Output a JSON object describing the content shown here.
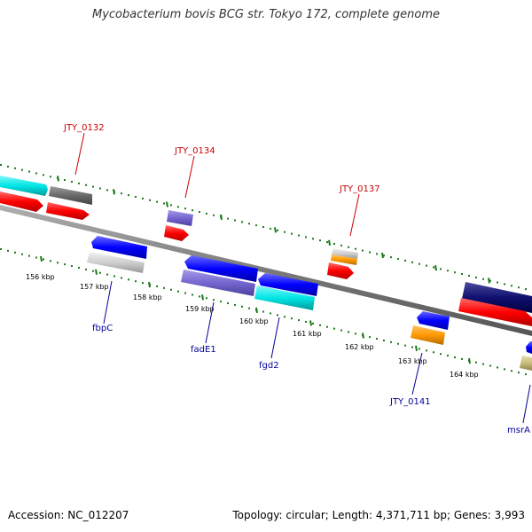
{
  "title": "Mycobacterium bovis BCG str. Tokyo 172, complete genome",
  "footer": {
    "accession": "Accession: NC_012207",
    "summary": "Topology: circular; Length: 4,371,711 bp; Genes: 3,993"
  },
  "colors": {
    "upper_label": "#cc0000",
    "lower_label": "#000099",
    "ruler": "#1a7a1a",
    "genome_line": "#808080"
  },
  "ticks": [
    {
      "label": "156 kbp"
    },
    {
      "label": "157 kbp"
    },
    {
      "label": "158 kbp"
    },
    {
      "label": "159 kbp"
    },
    {
      "label": "160 kbp"
    },
    {
      "label": "161 kbp"
    },
    {
      "label": "162 kbp"
    },
    {
      "label": "163 kbp"
    },
    {
      "label": "164 kbp"
    }
  ],
  "upper_labels": [
    {
      "text": "JTY_0132"
    },
    {
      "text": "JTY_0134"
    },
    {
      "text": "JTY_0137"
    }
  ],
  "lower_labels": [
    {
      "text": "fbpC"
    },
    {
      "text": "fadE1"
    },
    {
      "text": "fgd2"
    },
    {
      "text": "JTY_0141"
    },
    {
      "text": "msrA"
    }
  ]
}
